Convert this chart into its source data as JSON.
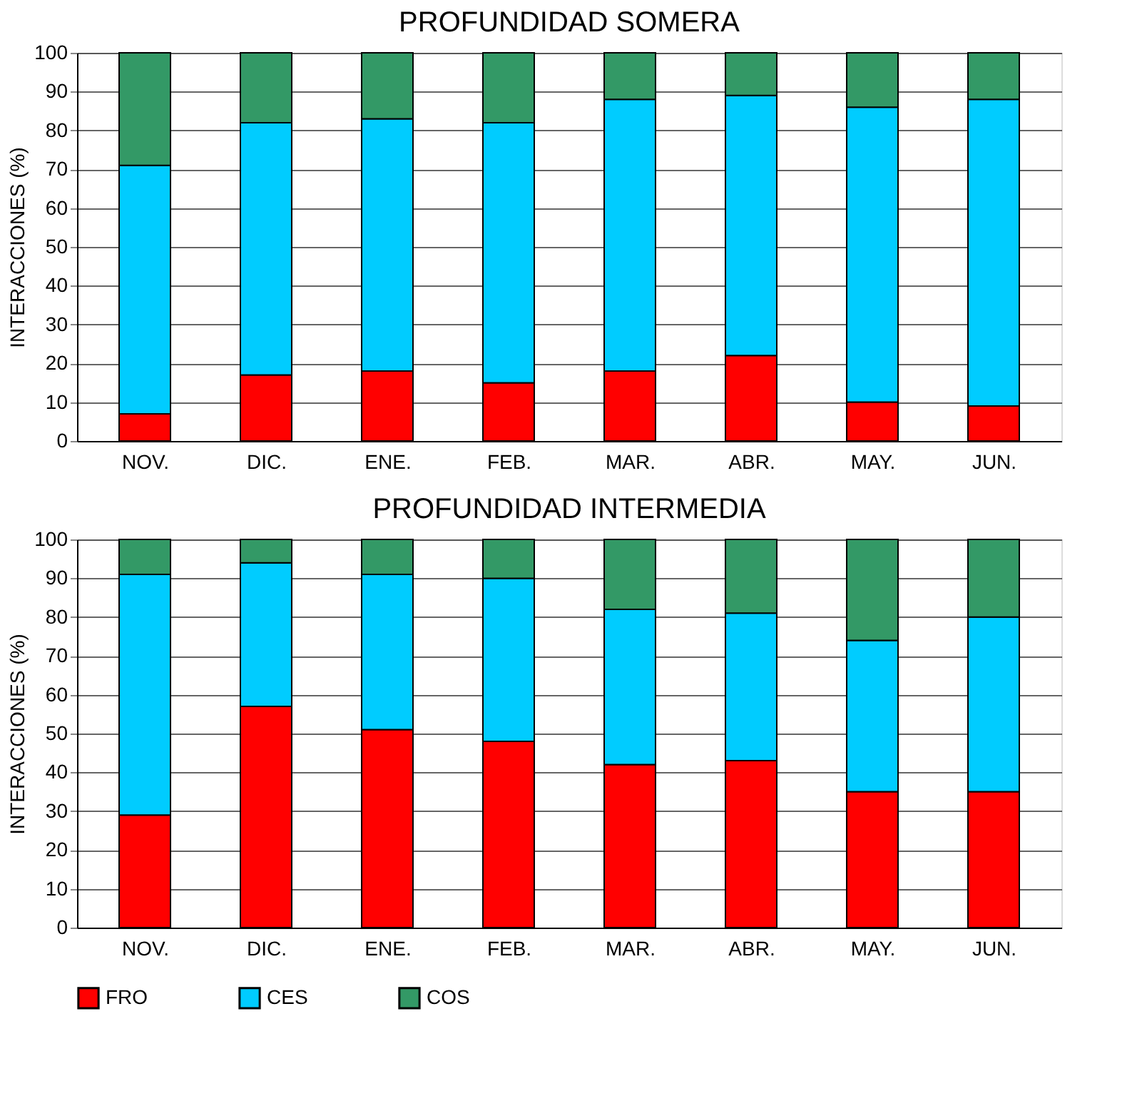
{
  "chart_data": [
    {
      "type": "bar",
      "stacked": true,
      "title": "PROFUNDIDAD SOMERA",
      "ylabel": "INTERACCIONES (%)",
      "categories": [
        "NOV.",
        "DIC.",
        "ENE.",
        "FEB.",
        "MAR.",
        "ABR.",
        "MAY.",
        "JUN."
      ],
      "ylim": [
        0,
        100
      ],
      "yticks": [
        0,
        10,
        20,
        30,
        40,
        50,
        60,
        70,
        80,
        90,
        100
      ],
      "grid": "y",
      "legend": "bottom",
      "series": [
        {
          "name": "FRO",
          "color": "#ff0000",
          "values": [
            7,
            17,
            18,
            15,
            18,
            22,
            10,
            9
          ]
        },
        {
          "name": "CES",
          "color": "#00ccff",
          "values": [
            64,
            65,
            65,
            67,
            70,
            67,
            76,
            79
          ]
        },
        {
          "name": "COS",
          "color": "#339966",
          "values": [
            29,
            18,
            17,
            18,
            12,
            11,
            14,
            12
          ]
        }
      ]
    },
    {
      "type": "bar",
      "stacked": true,
      "title": "PROFUNDIDAD INTERMEDIA",
      "ylabel": "INTERACCIONES (%)",
      "categories": [
        "NOV.",
        "DIC.",
        "ENE.",
        "FEB.",
        "MAR.",
        "ABR.",
        "MAY.",
        "JUN."
      ],
      "ylim": [
        0,
        100
      ],
      "yticks": [
        0,
        10,
        20,
        30,
        40,
        50,
        60,
        70,
        80,
        90,
        100
      ],
      "grid": "y",
      "legend": "bottom",
      "series": [
        {
          "name": "FRO",
          "color": "#ff0000",
          "values": [
            29,
            57,
            51,
            48,
            42,
            43,
            35,
            35
          ]
        },
        {
          "name": "CES",
          "color": "#00ccff",
          "values": [
            62,
            37,
            40,
            42,
            40,
            38,
            39,
            45
          ]
        },
        {
          "name": "COS",
          "color": "#339966",
          "values": [
            9,
            6,
            9,
            10,
            18,
            19,
            26,
            20
          ]
        }
      ]
    }
  ]
}
